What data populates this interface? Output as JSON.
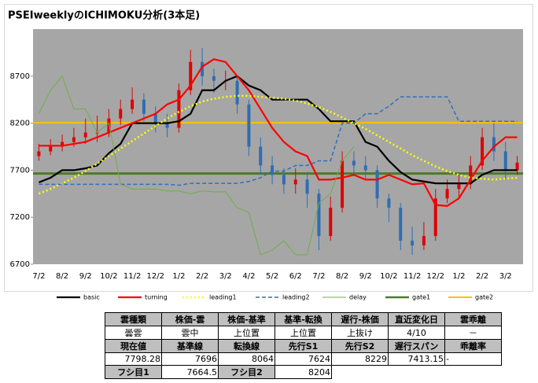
{
  "chart_data": {
    "type": "ichimoku",
    "title": "PSEIweeklyのICHIMOKU分析(3本足)",
    "categories": [
      "7/2",
      null,
      "8/2",
      null,
      "9/2",
      null,
      "10/2",
      null,
      "11/2",
      null,
      "12/2",
      null,
      "1/2",
      null,
      "2/2",
      null,
      "3/2",
      null,
      "4/2",
      null,
      "5/2",
      null,
      "6/2",
      null,
      "7/2",
      null,
      "8/2",
      null,
      "9/2",
      null,
      "10/2",
      null,
      "11/2",
      null,
      "12/2",
      null,
      "1/2",
      null,
      "2/2",
      null,
      "3/2",
      null
    ],
    "ylim": [
      6700,
      9200
    ],
    "yticks": [
      6700,
      7200,
      7700,
      8200,
      8700
    ],
    "candles": {
      "up_color": "#e00000",
      "down_color": "#2f6db5",
      "open": [
        7850,
        7900,
        7950,
        8000,
        8050,
        8100,
        8100,
        8250,
        8350,
        8450,
        8300,
        8200,
        8150,
        8550,
        8850,
        8700,
        8650,
        8650,
        8400,
        7950,
        7750,
        7650,
        7550,
        7600,
        7450,
        7000,
        7300,
        7800,
        7750,
        7700,
        7400,
        7300,
        6950,
        6900,
        7000,
        7400,
        7500,
        7550,
        7750,
        8050,
        7900,
        7700
      ],
      "high": [
        7980,
        8030,
        8080,
        8150,
        8250,
        8280,
        8350,
        8450,
        8580,
        8520,
        8380,
        8300,
        8620,
        8980,
        9000,
        8780,
        8760,
        8700,
        8450,
        8050,
        7850,
        7720,
        7720,
        7680,
        7500,
        7420,
        7900,
        7900,
        7850,
        7750,
        7450,
        7350,
        7100,
        7150,
        7500,
        7600,
        7650,
        7850,
        8150,
        8200,
        8000,
        7850
      ],
      "low": [
        7800,
        7860,
        7900,
        7950,
        7980,
        8000,
        8050,
        8180,
        8300,
        8220,
        8100,
        8050,
        8100,
        8500,
        8600,
        8520,
        8550,
        8300,
        7850,
        7650,
        7550,
        7450,
        7450,
        7300,
        6850,
        6950,
        7250,
        7650,
        7600,
        7300,
        7150,
        6850,
        6800,
        6850,
        6950,
        7350,
        7400,
        7500,
        7700,
        7800,
        7600,
        7650
      ],
      "close": [
        7900,
        7950,
        8000,
        8050,
        8100,
        8100,
        8250,
        8350,
        8450,
        8300,
        8200,
        8150,
        8550,
        8850,
        8700,
        8650,
        8650,
        8400,
        7950,
        7750,
        7650,
        7550,
        7600,
        7450,
        7000,
        7300,
        7800,
        7750,
        7700,
        7400,
        7300,
        6950,
        6900,
        7000,
        7400,
        7500,
        7550,
        7750,
        8050,
        7900,
        7700,
        7780
      ]
    },
    "series": [
      {
        "name": "basic",
        "color": "#000000",
        "style": "solid",
        "width": 2.2,
        "values": [
          7570,
          7620,
          7700,
          7700,
          7720,
          7750,
          7880,
          7980,
          8200,
          8200,
          8200,
          8200,
          8220,
          8300,
          8550,
          8550,
          8650,
          8700,
          8600,
          8550,
          8450,
          8450,
          8450,
          8450,
          8350,
          8220,
          8220,
          8220,
          8000,
          7950,
          7800,
          7680,
          7600,
          7580,
          7560,
          7560,
          7560,
          7560,
          7650,
          7700,
          7700,
          7700
        ]
      },
      {
        "name": "turning",
        "color": "#ff0000",
        "style": "solid",
        "width": 2.2,
        "values": [
          7960,
          7960,
          7960,
          7980,
          8000,
          8050,
          8100,
          8150,
          8200,
          8250,
          8300,
          8400,
          8450,
          8600,
          8800,
          8880,
          8850,
          8700,
          8550,
          8350,
          8150,
          8000,
          7900,
          7850,
          7600,
          7600,
          7620,
          7650,
          7600,
          7600,
          7650,
          7600,
          7550,
          7560,
          7330,
          7320,
          7400,
          7600,
          7800,
          7950,
          8050,
          8050
        ]
      },
      {
        "name": "leading1",
        "color": "#ffff00",
        "style": "dotted",
        "width": 2.5,
        "values": [
          7450,
          7500,
          7560,
          7620,
          7690,
          7770,
          7850,
          7930,
          8010,
          8090,
          8170,
          8250,
          8320,
          8380,
          8430,
          8460,
          8480,
          8490,
          8490,
          8480,
          8470,
          8460,
          8440,
          8410,
          8370,
          8320,
          8260,
          8200,
          8140,
          8070,
          8000,
          7930,
          7860,
          7800,
          7740,
          7690,
          7650,
          7620,
          7610,
          7600,
          7610,
          7620
        ]
      },
      {
        "name": "leading2",
        "color": "#2e6fc0",
        "style": "dashed",
        "width": 1.5,
        "values": [
          7550,
          7550,
          7550,
          7550,
          7550,
          7550,
          7550,
          7550,
          7550,
          7550,
          7550,
          7550,
          7540,
          7560,
          7560,
          7560,
          7560,
          7560,
          7580,
          7620,
          7690,
          7690,
          7750,
          7750,
          7800,
          7800,
          8200,
          8200,
          8300,
          8300,
          8380,
          8480,
          8480,
          8480,
          8480,
          8480,
          8220,
          8220,
          8220,
          8220,
          8220,
          8220
        ]
      },
      {
        "name": "delay",
        "color": "#70ad47",
        "style": "solid",
        "width": 1,
        "values": [
          8300,
          8550,
          8700,
          8350,
          8350,
          8100,
          8200,
          7550,
          7500,
          7500,
          7500,
          7480,
          7480,
          7450,
          7480,
          7470,
          7470,
          7300,
          7250,
          6800,
          6850,
          6950,
          6800,
          6800,
          7350,
          7450,
          7800,
          7950,
          null,
          null,
          null,
          null,
          null,
          null,
          null,
          null,
          null,
          null,
          null,
          null,
          null,
          null
        ]
      },
      {
        "name": "gate1",
        "color": "#4f7a28",
        "style": "level",
        "width": 3,
        "level": 7664.5
      },
      {
        "name": "gate2",
        "color": "#ffc000",
        "style": "level",
        "width": 2,
        "level": 8204
      }
    ]
  },
  "table": {
    "rows": [
      [
        "雲種類",
        "株価-雲",
        "株価-基準",
        "基準-転換",
        "遅行-株価",
        "直近変化日",
        "雲乖離"
      ],
      [
        "曇雲",
        "雲中",
        "上位置",
        "上位置",
        "上抜け",
        "4/10",
        "－"
      ],
      [
        "現在値",
        "基準線",
        "転換線",
        "先行S1",
        "先行S2",
        "遅行スパン",
        "乖離率"
      ],
      [
        7798.28,
        7696,
        8064,
        7624,
        8229,
        7413.15,
        "-"
      ],
      [
        "フシ目1",
        7664.5,
        "フシ目2",
        8204
      ]
    ]
  }
}
